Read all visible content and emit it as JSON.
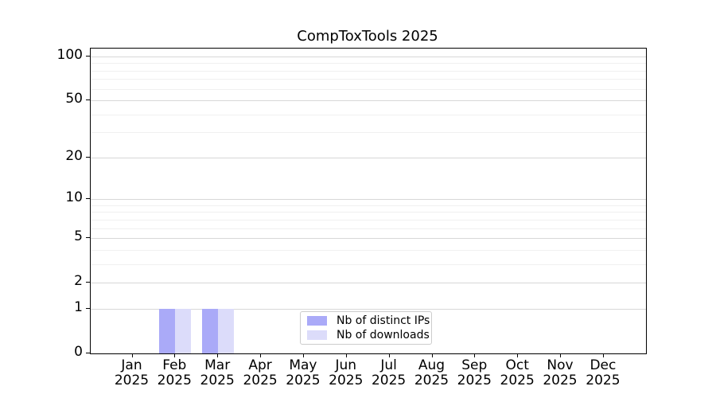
{
  "title": "CompToxTools 2025",
  "colors": {
    "bar_distinct_ips": "#aaaaf8",
    "bar_downloads": "#dcdcfa",
    "grid_major": "#d7d7d7",
    "grid_minor": "#f0f0f0",
    "axis": "#000000",
    "legend_border": "#cccccc",
    "background": "#ffffff"
  },
  "chart_data": {
    "type": "bar",
    "title": "CompToxTools 2025",
    "categories": [
      "Jan 2025",
      "Feb 2025",
      "Mar 2025",
      "Apr 2025",
      "May 2025",
      "Jun 2025",
      "Jul 2025",
      "Aug 2025",
      "Sep 2025",
      "Oct 2025",
      "Nov 2025",
      "Dec 2025"
    ],
    "series": [
      {
        "name": "Nb of distinct IPs",
        "color": "#aaaaf8",
        "values": [
          0,
          1,
          1,
          0,
          0,
          0,
          0,
          0,
          0,
          0,
          0,
          0
        ]
      },
      {
        "name": "Nb of downloads",
        "color": "#dcdcfa",
        "values": [
          0,
          1,
          1,
          0,
          0,
          0,
          0,
          0,
          0,
          0,
          0,
          0
        ]
      }
    ],
    "xlabel": "",
    "ylabel": "",
    "yscale": "log10(value+1)",
    "ylim": [
      0,
      113
    ],
    "yticks": [
      0,
      1,
      2,
      5,
      10,
      20,
      50,
      100
    ],
    "minor_gridlines": [
      3,
      4,
      6,
      7,
      8,
      9,
      30,
      40,
      60,
      70,
      80,
      90
    ],
    "grid": "horizontal, major and minor",
    "legend_position": "lower center (inside axes)"
  }
}
